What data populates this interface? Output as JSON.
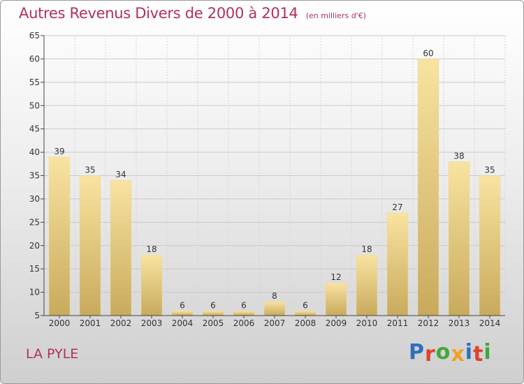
{
  "header": {
    "title": "Autres Revenus Divers de 2000 à 2014",
    "subtitle": "(en milliers d'€)"
  },
  "footer": {
    "commune": "LA PYLE",
    "logo_text": "Proxiti"
  },
  "colors": {
    "title": "#b03060",
    "bar_light": "#f8e3a0",
    "bar_dark": "#c8aa5c",
    "logo": [
      "#2f6fc0",
      "#e0422b",
      "#43a63c",
      "#f0a020",
      "#2f6fc0",
      "#e0422b",
      "#43a63c"
    ]
  },
  "chart_data": {
    "type": "bar",
    "categories": [
      "2000",
      "2001",
      "2002",
      "2003",
      "2004",
      "2005",
      "2006",
      "2007",
      "2008",
      "2009",
      "2010",
      "2011",
      "2012",
      "2013",
      "2014"
    ],
    "values": [
      39,
      35,
      34,
      18,
      6,
      6,
      6,
      8,
      6,
      12,
      18,
      27,
      60,
      38,
      35
    ],
    "ylim": [
      5,
      65
    ],
    "yticks": [
      5,
      10,
      15,
      20,
      25,
      30,
      35,
      40,
      45,
      50,
      55,
      60,
      65
    ],
    "grid": true,
    "data_labels": true
  }
}
